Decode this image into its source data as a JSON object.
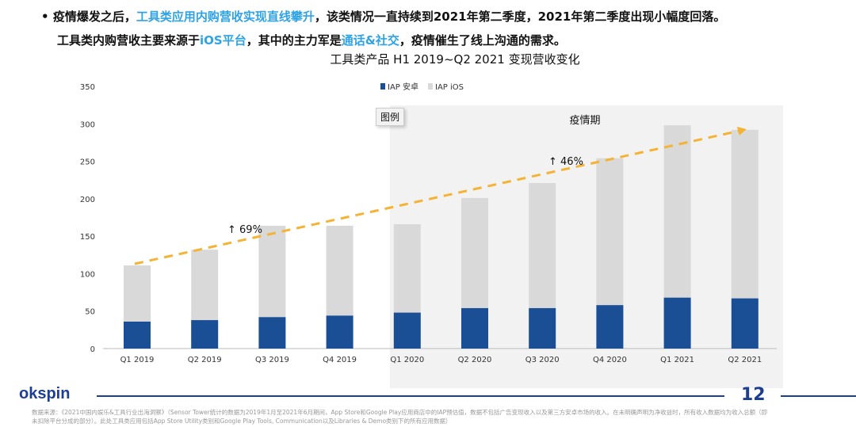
{
  "bullet": {
    "line1": [
      {
        "t": "疫情爆发之后，",
        "h": false
      },
      {
        "t": "工具类应用内购营收实现直线攀升",
        "h": true
      },
      {
        "t": "，该类情况一直持续到2021年第二季度，2021年第二季度出现小幅度回落。",
        "h": false
      }
    ],
    "line2": [
      {
        "t": "工具类内购营收主要来源于",
        "h": false
      },
      {
        "t": "iOS平台",
        "h": true
      },
      {
        "t": "，其中的主力军是",
        "h": false
      },
      {
        "t": "通话&社交",
        "h": true
      },
      {
        "t": "，疫情催生了线上沟通的需求。",
        "h": false
      }
    ]
  },
  "colors": {
    "highlight": "#2ea3e6",
    "android": "#1a4f96",
    "ios": "#d9d9d9",
    "trend": "#f5b335",
    "shade": "#f2f2f2"
  },
  "legend_button": "图例",
  "chart_data": {
    "type": "bar",
    "stacked": true,
    "title": "工具类产品 H1 2019~Q2 2021 变现营收变化",
    "categories": [
      "Q1 2019",
      "Q2 2019",
      "Q3 2019",
      "Q4 2019",
      "Q1 2020",
      "Q2 2020",
      "Q3 2020",
      "Q4 2020",
      "Q1 2021",
      "Q2 2021"
    ],
    "series": [
      {
        "name": "IAP 安卓",
        "values": [
          36,
          38,
          42,
          44,
          48,
          54,
          54,
          58,
          68,
          67
        ]
      },
      {
        "name": "IAP iOS",
        "values": [
          75,
          94,
          122,
          120,
          118,
          147,
          167,
          196,
          230,
          225
        ]
      }
    ],
    "ylim": [
      0,
      350
    ],
    "yticks": [
      0,
      50,
      100,
      150,
      200,
      250,
      300,
      350
    ],
    "legend": "top",
    "grid": false,
    "shaded_region": {
      "label": "疫情期",
      "from": "Q1 2020",
      "to": "Q2 2021"
    },
    "annotations": [
      {
        "text": "↑ 69%"
      },
      {
        "text": "↑ 46%"
      }
    ],
    "trend": "dashed arrow from Q1 2019 to Q2 2021"
  },
  "footer": {
    "logo": "okspin",
    "page": "12",
    "note": "数据来源：《2021中国内娱乐&工具行业出海洞察》（Sensor Tower统计的数据为2019年1月至2021年6月期间，App Store和Google Play应用商店中的IAP预估值，数据不包括广告变现收入以及第三方安卓市场的收入。在未明确声明为净收益时，所有收入数据均为收入总额（即未扣除平台分成的部分）。此处工具类应用包括App Store Utility类别和Google Play Tools, Communication以及Libraries & Demo类别下的所有应用数据）"
  }
}
